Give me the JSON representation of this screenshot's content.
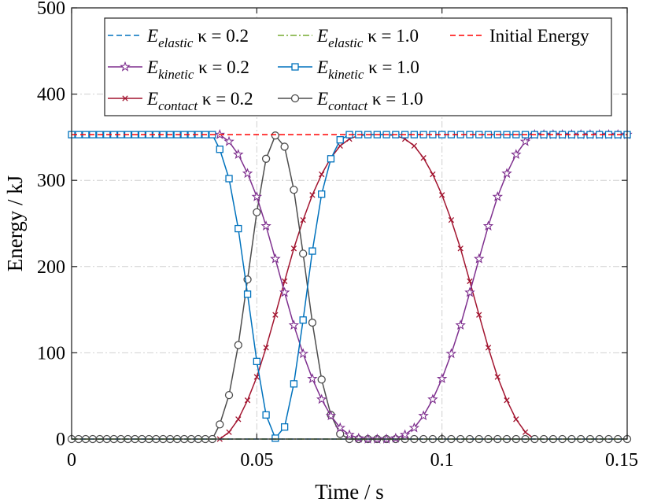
{
  "chart_data": {
    "type": "line",
    "title": "",
    "xlabel": "Time / s",
    "ylabel": "Energy / kJ",
    "xlim": [
      0,
      0.15
    ],
    "ylim": [
      0,
      500
    ],
    "xticks": [
      0,
      0.05,
      0.1,
      0.15
    ],
    "xtick_labels": [
      "0",
      "0.05",
      "0.1",
      "0.15"
    ],
    "yticks": [
      0,
      100,
      200,
      300,
      400,
      500
    ],
    "ytick_labels": [
      "0",
      "100",
      "200",
      "300",
      "400",
      "500"
    ],
    "grid": true,
    "legend_position": "top",
    "colors": {
      "blue": "#0072BD",
      "olive": "#77AC30",
      "red": "#FF0000",
      "purple": "#7E2F8E",
      "crimson": "#A2142F",
      "gray": "#4D4D4D"
    },
    "series": [
      {
        "name": "E elastic κ = 0.2",
        "legend_main": "E",
        "legend_sub": "elastic",
        "legend_param": " κ = 0.2",
        "color": "#0072BD",
        "dash": "dashed",
        "marker": "none",
        "x": [
          0,
          0.15
        ],
        "y": [
          0,
          0
        ]
      },
      {
        "name": "E elastic κ = 1.0",
        "legend_main": "E",
        "legend_sub": "elastic",
        "legend_param": " κ = 1.0",
        "color": "#77AC30",
        "dash": "dashdot",
        "marker": "none",
        "x": [
          0,
          0.15
        ],
        "y": [
          0,
          0
        ]
      },
      {
        "name": "Initial Energy",
        "legend_main": "Initial Energy",
        "legend_sub": "",
        "legend_param": "",
        "color": "#FF0000",
        "dash": "dashed",
        "marker": "none",
        "x": [
          0,
          0.15
        ],
        "y": [
          353,
          353
        ]
      },
      {
        "name": "E kinetic κ = 0.2",
        "legend_main": "E",
        "legend_sub": "kinetic",
        "legend_param": " κ = 0.2",
        "color": "#7E2F8E",
        "dash": "solid",
        "marker": "star",
        "x": [
          0.04,
          0.0425,
          0.045,
          0.0475,
          0.05,
          0.0525,
          0.055,
          0.0575,
          0.06,
          0.0625,
          0.065,
          0.0675,
          0.07,
          0.0725,
          0.075,
          0.0775,
          0.08,
          0.0825,
          0.085,
          0.0875,
          0.09,
          0.0925,
          0.095,
          0.0975,
          0.1,
          0.1025,
          0.105,
          0.1075,
          0.11,
          0.1125,
          0.115,
          0.1175,
          0.12,
          0.1225,
          0.125,
          0.1275,
          0.13,
          0.1325,
          0.135,
          0.1375,
          0.14,
          0.1425,
          0.145,
          0.1475,
          0.15
        ],
        "y": [
          353,
          345,
          330,
          308,
          281,
          247,
          209,
          170,
          132,
          99,
          70,
          46,
          27,
          13,
          5,
          1,
          0,
          0,
          0,
          1,
          5,
          13,
          27,
          46,
          70,
          99,
          132,
          170,
          209,
          247,
          281,
          308,
          330,
          345,
          353,
          353,
          353,
          353,
          353,
          353,
          353,
          353,
          353,
          353,
          353
        ]
      },
      {
        "name": "E kinetic κ = 1.0",
        "legend_main": "E",
        "legend_sub": "kinetic",
        "legend_param": " κ = 1.0",
        "color": "#0072BD",
        "dash": "solid",
        "marker": "square",
        "x": [
          0,
          0.0019,
          0.0038,
          0.0057,
          0.0076,
          0.0095,
          0.0114,
          0.0133,
          0.0152,
          0.0171,
          0.019,
          0.0209,
          0.0228,
          0.0247,
          0.0266,
          0.0285,
          0.0304,
          0.0323,
          0.0342,
          0.0361,
          0.038,
          0.04,
          0.0425,
          0.045,
          0.0475,
          0.05,
          0.0525,
          0.055,
          0.0575,
          0.06,
          0.0625,
          0.065,
          0.0675,
          0.07,
          0.0725,
          0.075,
          0.0775,
          0.08,
          0.0825,
          0.085,
          0.0875,
          0.09,
          0.0925,
          0.095,
          0.0975,
          0.1,
          0.1025,
          0.105,
          0.1075,
          0.11,
          0.1125,
          0.115,
          0.1175,
          0.12,
          0.1225,
          0.125,
          0.1275,
          0.13,
          0.1325,
          0.135,
          0.1375,
          0.14,
          0.1425,
          0.145,
          0.1475,
          0.15
        ],
        "y": [
          353,
          353,
          353,
          353,
          353,
          353,
          353,
          353,
          353,
          353,
          353,
          353,
          353,
          353,
          353,
          353,
          353,
          353,
          353,
          353,
          353,
          336,
          302,
          244,
          168,
          90,
          28,
          1,
          14,
          64,
          138,
          218,
          284,
          325,
          347,
          353,
          353,
          353,
          353,
          353,
          353,
          353,
          353,
          353,
          353,
          353,
          353,
          353,
          353,
          353,
          353,
          353,
          353,
          353,
          353,
          353,
          353,
          353,
          353,
          353,
          353,
          353,
          353,
          353,
          353,
          353
        ]
      },
      {
        "name": "E contact κ = 0.2",
        "legend_main": "E",
        "legend_sub": "contact",
        "legend_param": " κ = 0.2",
        "color": "#A2142F",
        "dash": "solid",
        "marker": "x",
        "x": [
          0.04,
          0.0425,
          0.045,
          0.0475,
          0.05,
          0.0525,
          0.055,
          0.0575,
          0.06,
          0.0625,
          0.065,
          0.0675,
          0.07,
          0.0725,
          0.075,
          0.0775,
          0.08,
          0.0825,
          0.085,
          0.0875,
          0.09,
          0.0925,
          0.095,
          0.0975,
          0.1,
          0.1025,
          0.105,
          0.1075,
          0.11,
          0.1125,
          0.115,
          0.1175,
          0.12,
          0.1225,
          0.125,
          0.1275
        ],
        "y": [
          0,
          8,
          23,
          45,
          72,
          106,
          144,
          183,
          221,
          254,
          283,
          307,
          326,
          340,
          348,
          352,
          353,
          353,
          353,
          352,
          348,
          340,
          326,
          307,
          283,
          254,
          221,
          183,
          144,
          106,
          72,
          45,
          23,
          8,
          0,
          0
        ]
      },
      {
        "name": "E contact κ = 1.0",
        "legend_main": "E",
        "legend_sub": "contact",
        "legend_param": " κ = 1.0",
        "color": "#4D4D4D",
        "dash": "solid",
        "marker": "circle",
        "x": [
          0,
          0.0019,
          0.0038,
          0.0057,
          0.0076,
          0.0095,
          0.0114,
          0.0133,
          0.0152,
          0.0171,
          0.019,
          0.0209,
          0.0228,
          0.0247,
          0.0266,
          0.0285,
          0.0304,
          0.0323,
          0.0342,
          0.0361,
          0.038,
          0.04,
          0.0425,
          0.045,
          0.0475,
          0.05,
          0.0525,
          0.055,
          0.0575,
          0.06,
          0.0625,
          0.065,
          0.0675,
          0.07,
          0.0725,
          0.075,
          0.0775,
          0.08,
          0.0825,
          0.085,
          0.0875,
          0.09,
          0.0925,
          0.095,
          0.0975,
          0.1,
          0.1025,
          0.105,
          0.1075,
          0.11,
          0.1125,
          0.115,
          0.1175,
          0.12,
          0.1225,
          0.125,
          0.1275,
          0.13,
          0.1325,
          0.135,
          0.1375,
          0.14,
          0.1425,
          0.145,
          0.1475,
          0.15
        ],
        "y": [
          0,
          0,
          0,
          0,
          0,
          0,
          0,
          0,
          0,
          0,
          0,
          0,
          0,
          0,
          0,
          0,
          0,
          0,
          0,
          0,
          0,
          17,
          51,
          109,
          185,
          263,
          325,
          352,
          339,
          289,
          215,
          135,
          69,
          28,
          6,
          0,
          0,
          0,
          0,
          0,
          0,
          0,
          0,
          0,
          0,
          0,
          0,
          0,
          0,
          0,
          0,
          0,
          0,
          0,
          0,
          0,
          0,
          0,
          0,
          0,
          0,
          0,
          0,
          0,
          0,
          0
        ]
      }
    ],
    "legend_order": [
      0,
      1,
      2,
      3,
      4,
      5,
      6
    ]
  }
}
